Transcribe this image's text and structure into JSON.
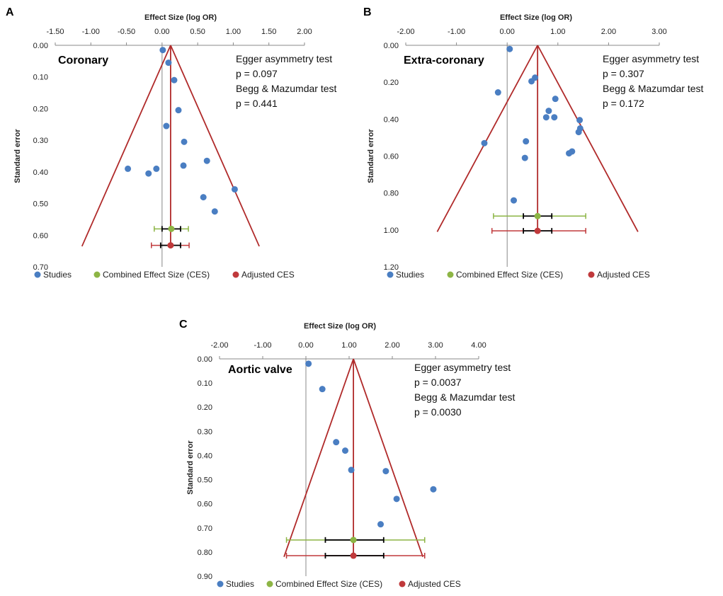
{
  "chart_data": [
    {
      "type": "scatter",
      "panel_label": "A",
      "subtitle": "Coronary",
      "xlabel": "Effect Size (log OR)",
      "ylabel": "Standard error",
      "xlim": [
        -1.5,
        2.0
      ],
      "ylim": [
        0.0,
        0.7
      ],
      "xticks": [
        "-1.50",
        "-1.00",
        "-0.50",
        "0.00",
        "0.50",
        "1.00",
        "1.50",
        "2.00"
      ],
      "yticks": [
        "0.00",
        "0.10",
        "0.20",
        "0.30",
        "0.40",
        "0.50",
        "0.60",
        "0.70"
      ],
      "annotations": [
        "Egger asymmetry test",
        "p = 0.097",
        "Begg & Mazumdar test",
        "p  = 0.441"
      ],
      "funnel": {
        "center": 0.12,
        "base_se": 0.635
      },
      "studies": [
        {
          "x": 0.01,
          "y": 0.015
        },
        {
          "x": 0.09,
          "y": 0.055
        },
        {
          "x": 0.17,
          "y": 0.11
        },
        {
          "x": 0.23,
          "y": 0.205
        },
        {
          "x": 0.06,
          "y": 0.255
        },
        {
          "x": 0.31,
          "y": 0.305
        },
        {
          "x": 0.3,
          "y": 0.38
        },
        {
          "x": 0.63,
          "y": 0.365
        },
        {
          "x": -0.48,
          "y": 0.39
        },
        {
          "x": -0.19,
          "y": 0.405
        },
        {
          "x": -0.08,
          "y": 0.39
        },
        {
          "x": 1.02,
          "y": 0.455
        },
        {
          "x": 0.58,
          "y": 0.48
        },
        {
          "x": 0.74,
          "y": 0.525
        }
      ],
      "ces": {
        "x": 0.13,
        "se": 0.58,
        "ci": [
          0.0,
          0.26
        ],
        "ci_outer": [
          -0.11,
          0.37
        ]
      },
      "adjusted_ces": {
        "x": 0.12,
        "se": 0.632,
        "ci": [
          -0.02,
          0.26
        ],
        "ci_outer": [
          -0.15,
          0.38
        ]
      }
    },
    {
      "type": "scatter",
      "panel_label": "B",
      "subtitle": "Extra-coronary",
      "xlabel": "Effect Size (log OR)",
      "ylabel": "Standard error",
      "xlim": [
        -2.0,
        3.0
      ],
      "ylim": [
        0.0,
        1.2
      ],
      "xticks": [
        "-2.00",
        "-1.00",
        "0.00",
        "1.00",
        "2.00",
        "3.00"
      ],
      "yticks": [
        "0.00",
        "0.20",
        "0.40",
        "0.60",
        "0.80",
        "1.00",
        "1.20"
      ],
      "annotations": [
        "Egger asymmetry test",
        "p = 0.307",
        "Begg & Mazumdar test",
        "p  = 0.172"
      ],
      "funnel": {
        "center": 0.6,
        "base_se": 1.01
      },
      "studies": [
        {
          "x": 0.05,
          "y": 0.02
        },
        {
          "x": 0.55,
          "y": 0.175
        },
        {
          "x": 0.48,
          "y": 0.195
        },
        {
          "x": -0.18,
          "y": 0.255
        },
        {
          "x": 0.95,
          "y": 0.29
        },
        {
          "x": 0.82,
          "y": 0.355
        },
        {
          "x": 0.77,
          "y": 0.39
        },
        {
          "x": 0.93,
          "y": 0.39
        },
        {
          "x": 1.43,
          "y": 0.405
        },
        {
          "x": 1.44,
          "y": 0.45
        },
        {
          "x": 1.41,
          "y": 0.47
        },
        {
          "x": 0.37,
          "y": 0.52
        },
        {
          "x": -0.45,
          "y": 0.53
        },
        {
          "x": 1.28,
          "y": 0.575
        },
        {
          "x": 1.22,
          "y": 0.585
        },
        {
          "x": 0.35,
          "y": 0.61
        },
        {
          "x": 0.13,
          "y": 0.84
        }
      ],
      "ces": {
        "x": 0.6,
        "se": 0.925,
        "ci": [
          0.32,
          0.88
        ],
        "ci_outer": [
          -0.27,
          1.55
        ]
      },
      "adjusted_ces": {
        "x": 0.6,
        "se": 1.005,
        "ci": [
          0.32,
          0.88
        ],
        "ci_outer": [
          -0.3,
          1.55
        ]
      }
    },
    {
      "type": "scatter",
      "panel_label": "C",
      "subtitle": "Aortic valve",
      "xlabel": "Effect Size (log OR)",
      "ylabel": "Standard error",
      "xlim": [
        -2.0,
        4.0
      ],
      "ylim": [
        0.0,
        0.9
      ],
      "xticks": [
        "-2.00",
        "-1.00",
        "0.00",
        "1.00",
        "2.00",
        "3.00",
        "4.00"
      ],
      "yticks": [
        "0.00",
        "0.10",
        "0.20",
        "0.30",
        "0.40",
        "0.50",
        "0.60",
        "0.70",
        "0.80",
        "0.90"
      ],
      "annotations": [
        "Egger asymmetry test",
        "p = 0.0037",
        "Begg & Mazumdar test",
        "p  = 0.0030"
      ],
      "funnel": {
        "center": 1.1,
        "base_se": 0.82
      },
      "studies": [
        {
          "x": 0.06,
          "y": 0.02
        },
        {
          "x": 0.38,
          "y": 0.125
        },
        {
          "x": 0.7,
          "y": 0.345
        },
        {
          "x": 0.91,
          "y": 0.38
        },
        {
          "x": 1.05,
          "y": 0.46
        },
        {
          "x": 1.85,
          "y": 0.465
        },
        {
          "x": 2.95,
          "y": 0.54
        },
        {
          "x": 2.1,
          "y": 0.58
        },
        {
          "x": 1.73,
          "y": 0.685
        }
      ],
      "ces": {
        "x": 1.1,
        "se": 0.75,
        "ci": [
          0.45,
          1.8
        ],
        "ci_outer": [
          -0.45,
          2.75
        ]
      },
      "adjusted_ces": {
        "x": 1.1,
        "se": 0.815,
        "ci": [
          0.45,
          1.8
        ],
        "ci_outer": [
          -0.45,
          2.75
        ]
      }
    }
  ],
  "legend": {
    "studies": "Studies",
    "ces": "Combined Effect Size (CES)",
    "adjusted": "Adjusted CES"
  },
  "colors": {
    "study": "#4a7ec2",
    "ces": "#8db545",
    "adjusted": "#c0393b",
    "funnel": "#b02a2a",
    "axis": "#888888",
    "ci_inner": "#000000"
  }
}
